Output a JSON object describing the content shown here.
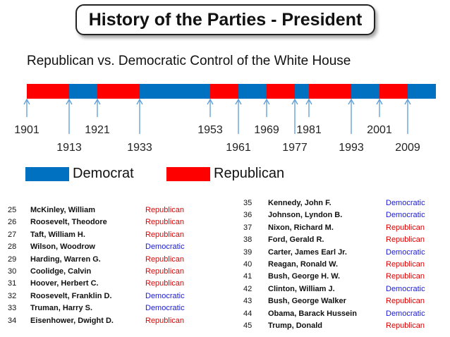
{
  "title": "History of the Parties - President",
  "subtitle": "Republican vs. Democratic Control of the White House",
  "colors": {
    "democrat": "#0070c0",
    "republican": "#ff0000",
    "axis": "#5b9bd5"
  },
  "timeline": {
    "start": 1901,
    "end": 2017,
    "segments": [
      {
        "from": 1901,
        "to": 1913,
        "party": "Republican"
      },
      {
        "from": 1913,
        "to": 1921,
        "party": "Democratic"
      },
      {
        "from": 1921,
        "to": 1933,
        "party": "Republican"
      },
      {
        "from": 1933,
        "to": 1953,
        "party": "Democratic"
      },
      {
        "from": 1953,
        "to": 1961,
        "party": "Republican"
      },
      {
        "from": 1961,
        "to": 1969,
        "party": "Democratic"
      },
      {
        "from": 1969,
        "to": 1977,
        "party": "Republican"
      },
      {
        "from": 1977,
        "to": 1981,
        "party": "Democratic"
      },
      {
        "from": 1981,
        "to": 1993,
        "party": "Republican"
      },
      {
        "from": 1993,
        "to": 2001,
        "party": "Democratic"
      },
      {
        "from": 2001,
        "to": 2009,
        "party": "Republican"
      },
      {
        "from": 2009,
        "to": 2017,
        "party": "Democratic"
      }
    ],
    "markers": [
      {
        "year": 1901,
        "row": "top"
      },
      {
        "year": 1913,
        "row": "bottom"
      },
      {
        "year": 1921,
        "row": "top"
      },
      {
        "year": 1933,
        "row": "bottom"
      },
      {
        "year": 1953,
        "row": "top"
      },
      {
        "year": 1961,
        "row": "bottom"
      },
      {
        "year": 1969,
        "row": "top"
      },
      {
        "year": 1977,
        "row": "bottom"
      },
      {
        "year": 1981,
        "row": "top"
      },
      {
        "year": 1993,
        "row": "bottom"
      },
      {
        "year": 2001,
        "row": "top"
      },
      {
        "year": 2009,
        "row": "bottom"
      }
    ]
  },
  "legend": {
    "democrat": "Democrat",
    "republican": "Republican"
  },
  "presidents_left": [
    {
      "num": "25",
      "name": "McKinley, William",
      "party": "Republican"
    },
    {
      "num": "26",
      "name": "Roosevelt, Theodore",
      "party": "Republican"
    },
    {
      "num": "27",
      "name": "Taft, William H.",
      "party": "Republican"
    },
    {
      "num": "28",
      "name": "Wilson, Woodrow",
      "party": "Democratic"
    },
    {
      "num": "29",
      "name": "Harding, Warren G.",
      "party": "Republican"
    },
    {
      "num": "30",
      "name": "Coolidge, Calvin",
      "party": "Republican"
    },
    {
      "num": "31",
      "name": "Hoover, Herbert C.",
      "party": "Republican"
    },
    {
      "num": "32",
      "name": "Roosevelt, Franklin D.",
      "party": "Democratic"
    },
    {
      "num": "33",
      "name": "Truman, Harry S.",
      "party": "Democratic"
    },
    {
      "num": "34",
      "name": "Eisenhower, Dwight D.",
      "party": "Republican"
    }
  ],
  "presidents_right": [
    {
      "num": "35",
      "name": "Kennedy, John F.",
      "party": "Democratic"
    },
    {
      "num": "36",
      "name": "Johnson, Lyndon B.",
      "party": "Democratic"
    },
    {
      "num": "37",
      "name": "Nixon, Richard M.",
      "party": "Republican"
    },
    {
      "num": "38",
      "name": "Ford, Gerald R.",
      "party": "Republican"
    },
    {
      "num": "39",
      "name": "Carter, James Earl Jr.",
      "party": "Democratic"
    },
    {
      "num": "40",
      "name": "Reagan, Ronald W.",
      "party": "Republican"
    },
    {
      "num": "41",
      "name": "Bush, George H. W.",
      "party": "Republican"
    },
    {
      "num": "42",
      "name": "Clinton, William J.",
      "party": "Democratic"
    },
    {
      "num": "43",
      "name": "Bush, George Walker",
      "party": "Republican"
    },
    {
      "num": "44",
      "name": "Obama, Barack Hussein",
      "party": "Democratic"
    },
    {
      "num": "45",
      "name": "Trump, Donald",
      "party": "Republican"
    }
  ]
}
